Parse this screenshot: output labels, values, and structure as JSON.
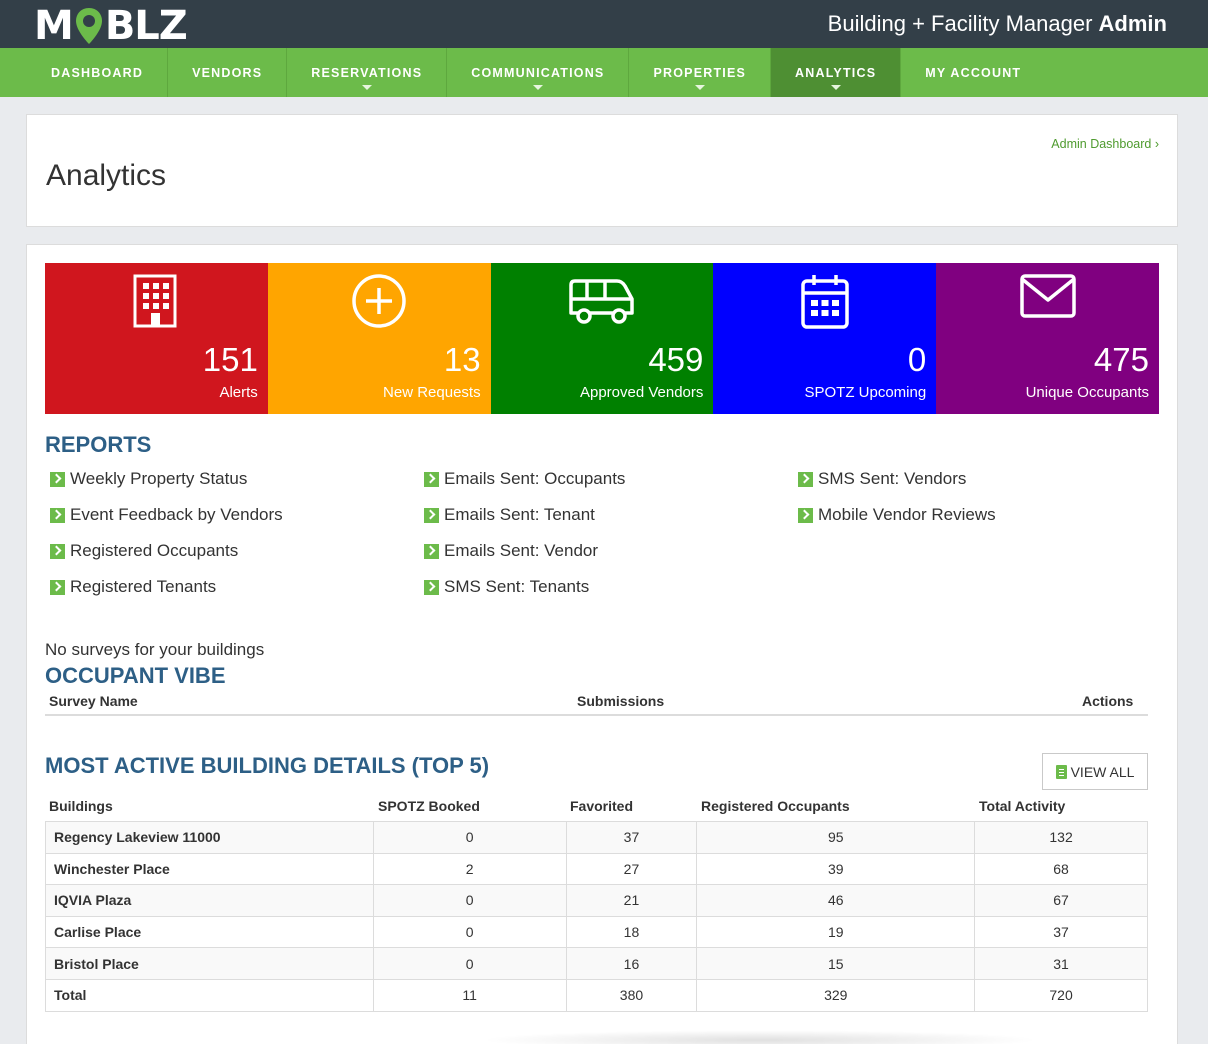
{
  "brand": {
    "logo_left": "M",
    "logo_right": "BLZ",
    "app_title": "Building + Facility Manager",
    "app_title_bold": "Admin"
  },
  "nav": [
    {
      "label": "Dashboard",
      "caret": false,
      "active": false
    },
    {
      "label": "Vendors",
      "caret": false,
      "active": false
    },
    {
      "label": "Reservations",
      "caret": true,
      "active": false
    },
    {
      "label": "Communications",
      "caret": true,
      "active": false
    },
    {
      "label": "Properties",
      "caret": true,
      "active": false
    },
    {
      "label": "Analytics",
      "caret": true,
      "active": true
    },
    {
      "label": "My Account",
      "caret": false,
      "active": false
    }
  ],
  "page": {
    "title": "Analytics",
    "breadcrumb": "Admin Dashboard ›"
  },
  "stats": [
    {
      "value": "151",
      "label": "Alerts",
      "color": "#d0161e",
      "icon": "building-icon"
    },
    {
      "value": "13",
      "label": "New Requests",
      "color": "#ffa500",
      "icon": "plus-circle-icon"
    },
    {
      "value": "459",
      "label": "Approved Vendors",
      "color": "#008000",
      "icon": "van-icon"
    },
    {
      "value": "0",
      "label": "SPOTZ Upcoming",
      "color": "#0000ff",
      "icon": "calendar-icon"
    },
    {
      "value": "475",
      "label": "Unique Occupants",
      "color": "#800080",
      "icon": "envelope-icon"
    }
  ],
  "reports": {
    "title": "REPORTS",
    "col1": [
      "Weekly Property Status",
      "Event Feedback by Vendors",
      "Registered Occupants",
      "Registered Tenants"
    ],
    "col2": [
      "Emails Sent: Occupants",
      "Emails Sent: Tenant",
      "Emails Sent: Vendor",
      "SMS Sent: Tenants"
    ],
    "col3": [
      "SMS Sent: Vendors",
      "Mobile Vendor Reviews"
    ]
  },
  "vibe": {
    "note": "No surveys for your buildings",
    "title": "OCCUPANT VIBE",
    "headers": {
      "name": "Survey Name",
      "submissions": "Submissions",
      "actions": "Actions"
    }
  },
  "buildings": {
    "title": "MOST ACTIVE BUILDING DETAILS (TOP 5)",
    "view_all": "VIEW ALL",
    "headers": [
      "Buildings",
      "SPOTZ Booked",
      "Favorited",
      "Registered Occupants",
      "Total Activity"
    ],
    "rows": [
      [
        "Regency Lakeview 11000",
        "0",
        "37",
        "95",
        "132"
      ],
      [
        "Winchester Place",
        "2",
        "27",
        "39",
        "68"
      ],
      [
        "IQVIA Plaza",
        "0",
        "21",
        "46",
        "67"
      ],
      [
        "Carlise Place",
        "0",
        "18",
        "19",
        "37"
      ],
      [
        "Bristol Place",
        "0",
        "16",
        "15",
        "31"
      ],
      [
        "Total",
        "11",
        "380",
        "329",
        "720"
      ]
    ]
  }
}
